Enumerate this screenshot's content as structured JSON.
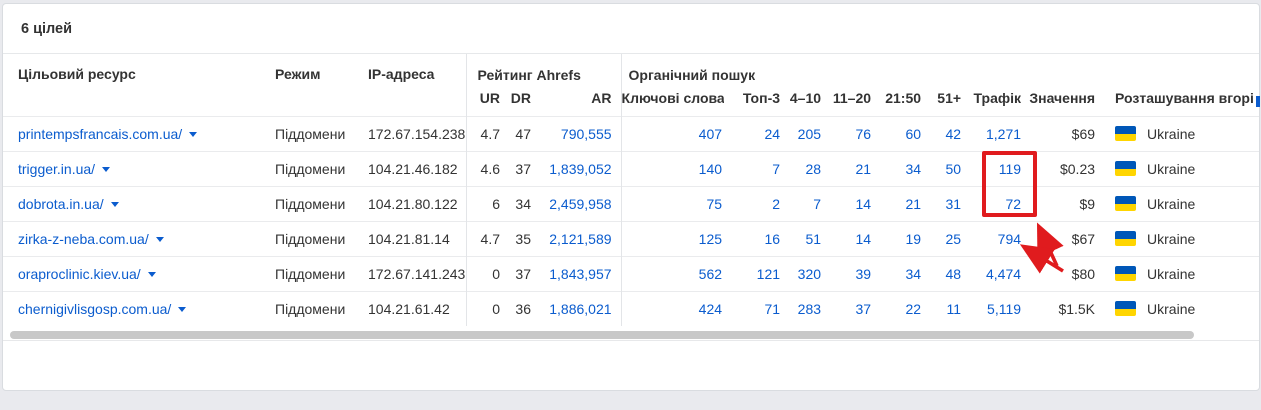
{
  "colors": {
    "link_blue": "#0b5cce",
    "text_dark": "#333333",
    "annotation_red": "#e01b1e",
    "flag_blue": "#0057b8",
    "flag_yellow": "#ffd500",
    "scrollbar": "#c8c8c8",
    "page_bg": "#e9eaee"
  },
  "card": {
    "title": "6 цілей"
  },
  "table": {
    "group_rating": "Рейтинг Ahrefs",
    "group_organic": "Органічний пошук",
    "columns": [
      {
        "key": "target",
        "label": "Цільовий ресурс"
      },
      {
        "key": "mode",
        "label": "Режим"
      },
      {
        "key": "ip",
        "label": "IP-адреса"
      },
      {
        "key": "ur",
        "label": "UR"
      },
      {
        "key": "dr",
        "label": "DR"
      },
      {
        "key": "ar",
        "label": "AR"
      },
      {
        "key": "keywords",
        "label": "Ключові слова"
      },
      {
        "key": "top3",
        "label": "Топ-3"
      },
      {
        "key": "p410",
        "label": "4–10"
      },
      {
        "key": "p1120",
        "label": "11–20"
      },
      {
        "key": "p2150",
        "label": "21:50"
      },
      {
        "key": "p51",
        "label": "51+"
      },
      {
        "key": "traffic",
        "label": "Трафік"
      },
      {
        "key": "value",
        "label": "Значення"
      },
      {
        "key": "location",
        "label": "Розташування вгорі"
      }
    ],
    "rows": [
      {
        "target": "printempsfrancais.com.ua/",
        "mode": "Піддомени",
        "ip": "172.67.154.238",
        "ur": "4.7",
        "dr": "47",
        "ar": "790,555",
        "keywords": "407",
        "top3": "24",
        "p410": "205",
        "p1120": "76",
        "p2150": "60",
        "p51": "42",
        "traffic": "1,271",
        "value": "$69",
        "location": "Ukraine"
      },
      {
        "target": "trigger.in.ua/",
        "mode": "Піддомени",
        "ip": "104.21.46.182",
        "ur": "4.6",
        "dr": "37",
        "ar": "1,839,052",
        "keywords": "140",
        "top3": "7",
        "p410": "28",
        "p1120": "21",
        "p2150": "34",
        "p51": "50",
        "traffic": "119",
        "value": "$0.23",
        "location": "Ukraine"
      },
      {
        "target": "dobrota.in.ua/",
        "mode": "Піддомени",
        "ip": "104.21.80.122",
        "ur": "6",
        "dr": "34",
        "ar": "2,459,958",
        "keywords": "75",
        "top3": "2",
        "p410": "7",
        "p1120": "14",
        "p2150": "21",
        "p51": "31",
        "traffic": "72",
        "value": "$9",
        "location": "Ukraine"
      },
      {
        "target": "zirka-z-neba.com.ua/",
        "mode": "Піддомени",
        "ip": "104.21.81.14",
        "ur": "4.7",
        "dr": "35",
        "ar": "2,121,589",
        "keywords": "125",
        "top3": "16",
        "p410": "51",
        "p1120": "14",
        "p2150": "19",
        "p51": "25",
        "traffic": "794",
        "value": "$67",
        "location": "Ukraine"
      },
      {
        "target": "oraproclinic.kiev.ua/",
        "mode": "Піддомени",
        "ip": "172.67.141.243",
        "ur": "0",
        "dr": "37",
        "ar": "1,843,957",
        "keywords": "562",
        "top3": "121",
        "p410": "320",
        "p1120": "39",
        "p2150": "34",
        "p51": "48",
        "traffic": "4,474",
        "value": "$80",
        "location": "Ukraine"
      },
      {
        "target": "chernigivlisgosp.com.ua/",
        "mode": "Піддомени",
        "ip": "104.21.61.42",
        "ur": "0",
        "dr": "36",
        "ar": "1,886,021",
        "keywords": "424",
        "top3": "71",
        "p410": "283",
        "p1120": "37",
        "p2150": "22",
        "p51": "11",
        "traffic": "5,119",
        "value": "$1.5K",
        "location": "Ukraine"
      }
    ]
  },
  "annotation": {
    "highlighted_values": [
      "119",
      "72"
    ]
  }
}
